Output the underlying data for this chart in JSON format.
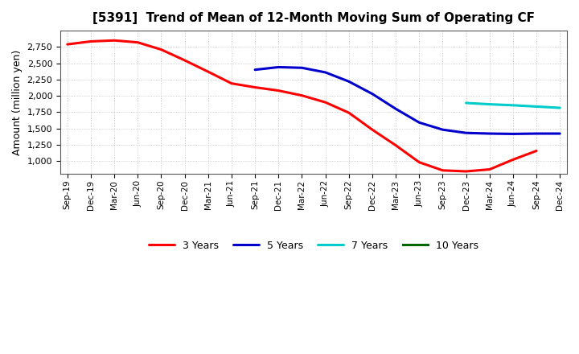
{
  "title": "[5391]  Trend of Mean of 12-Month Moving Sum of Operating CF",
  "ylabel": "Amount (million yen)",
  "background_color": "#ffffff",
  "grid_color": "#aaaaaa",
  "ylim": [
    800,
    3000
  ],
  "yticks": [
    1000,
    1250,
    1500,
    1750,
    2000,
    2250,
    2500,
    2750
  ],
  "x_labels": [
    "Sep-19",
    "Dec-19",
    "Mar-20",
    "Jun-20",
    "Sep-20",
    "Dec-20",
    "Mar-21",
    "Jun-21",
    "Sep-21",
    "Dec-21",
    "Mar-22",
    "Jun-22",
    "Sep-22",
    "Dec-22",
    "Mar-23",
    "Jun-23",
    "Sep-23",
    "Dec-23",
    "Mar-24",
    "Jun-24",
    "Sep-24",
    "Dec-24"
  ],
  "series": {
    "3 Years": {
      "color": "#ff0000",
      "data_indices": [
        0,
        1,
        2,
        3,
        4,
        5,
        6,
        7,
        8,
        9,
        10,
        11,
        12,
        13,
        14,
        15,
        16,
        17,
        18,
        19,
        20
      ],
      "values": [
        2790,
        2835,
        2850,
        2820,
        2710,
        2545,
        2370,
        2190,
        2130,
        2080,
        2005,
        1900,
        1740,
        1480,
        1240,
        980,
        855,
        840,
        870,
        1020,
        1155
      ]
    },
    "5 Years": {
      "color": "#0000cc",
      "data_indices": [
        8,
        9,
        10,
        11,
        12,
        13,
        14,
        15,
        16,
        17,
        18,
        19,
        20,
        21
      ],
      "values": [
        2400,
        2440,
        2430,
        2360,
        2220,
        2030,
        1800,
        1590,
        1480,
        1430,
        1420,
        1415,
        1420,
        1420
      ]
    },
    "7 Years": {
      "color": "#00cccc",
      "data_indices": [
        17,
        18,
        19,
        20,
        21
      ],
      "values": [
        1890,
        1870,
        1855,
        1835,
        1815
      ]
    },
    "10 Years": {
      "color": "#006600",
      "data_indices": [],
      "values": []
    }
  }
}
